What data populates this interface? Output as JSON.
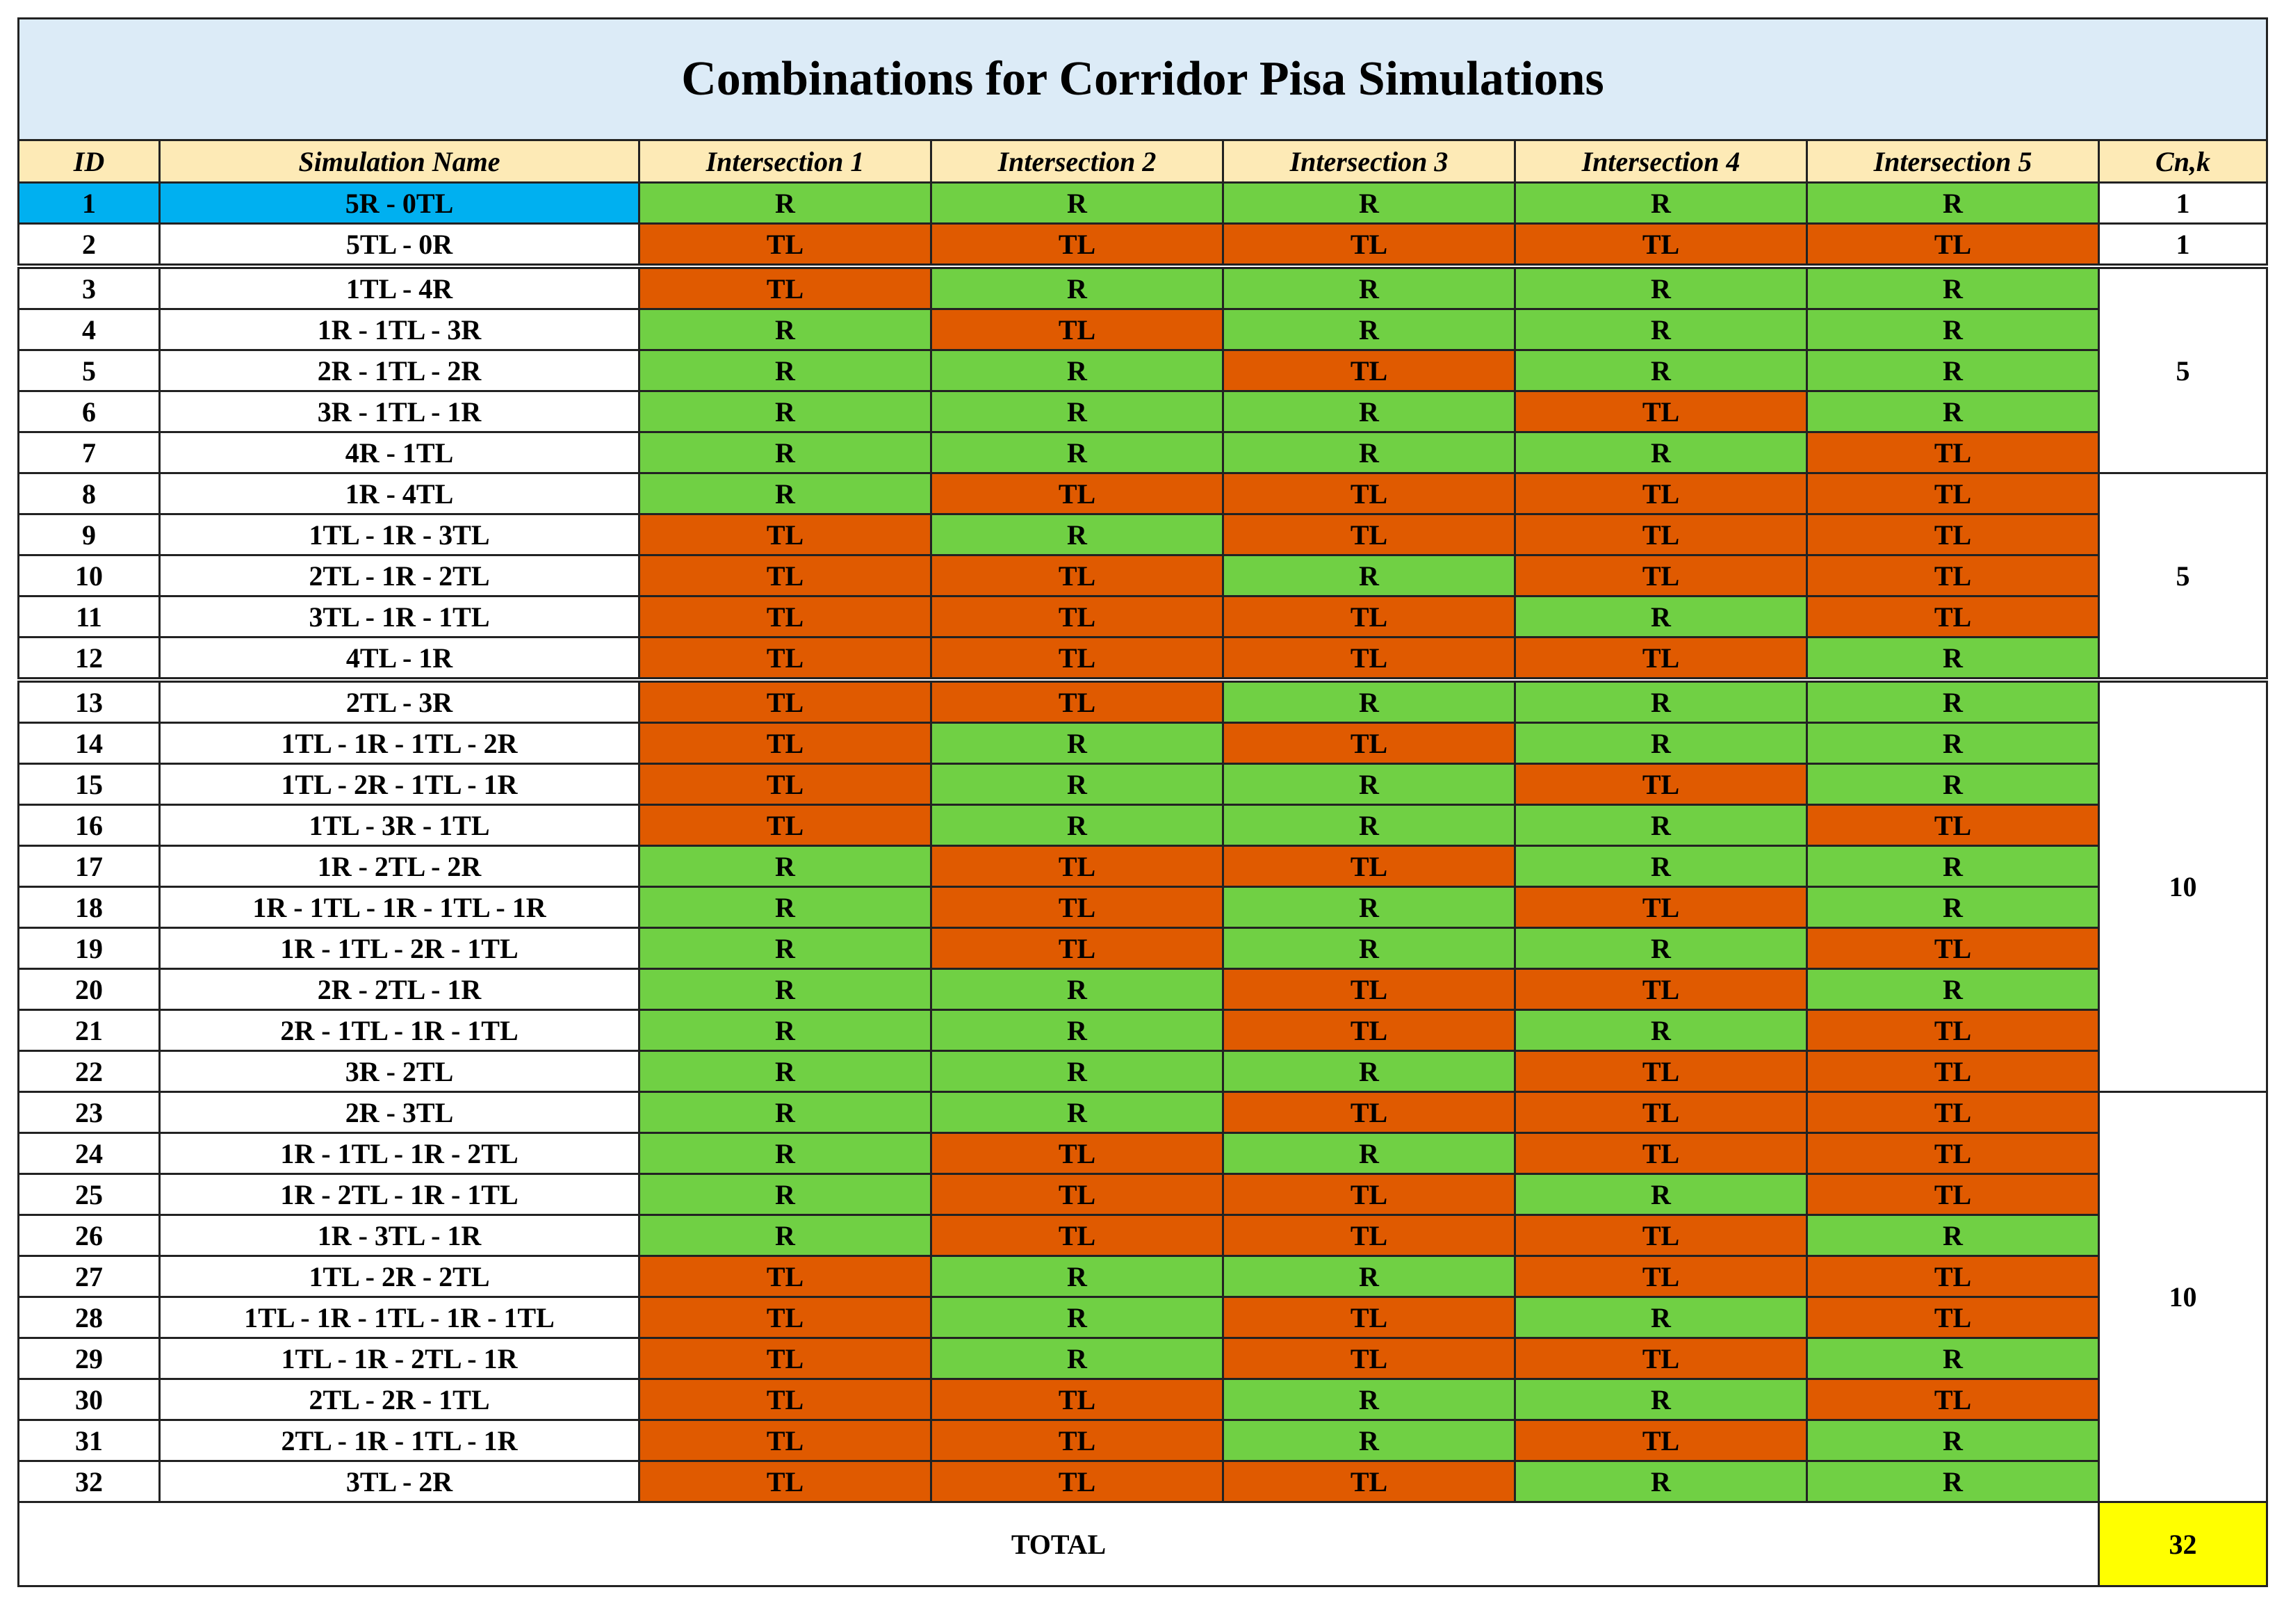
{
  "title": "Combinations for Corridor Pisa Simulations",
  "header": [
    "ID",
    "Simulation Name",
    "Intersection 1",
    "Intersection 2",
    "Intersection 3",
    "Intersection 4",
    "Intersection 5",
    "Cn,k"
  ],
  "colors": {
    "R": "#70d044",
    "TL": "#e05a00",
    "highlight": "#00b0f0",
    "total": "#ffff00",
    "header": "#fdeab6",
    "title": "#dcebf7"
  },
  "rows": [
    [
      1,
      "5R - 0TL",
      "R",
      "R",
      "R",
      "R",
      "R"
    ],
    [
      2,
      "5TL - 0R",
      "TL",
      "TL",
      "TL",
      "TL",
      "TL"
    ],
    [
      3,
      "1TL - 4R",
      "TL",
      "R",
      "R",
      "R",
      "R"
    ],
    [
      4,
      "1R - 1TL - 3R",
      "R",
      "TL",
      "R",
      "R",
      "R"
    ],
    [
      5,
      "2R - 1TL - 2R",
      "R",
      "R",
      "TL",
      "R",
      "R"
    ],
    [
      6,
      "3R - 1TL - 1R",
      "R",
      "R",
      "R",
      "TL",
      "R"
    ],
    [
      7,
      "4R - 1TL",
      "R",
      "R",
      "R",
      "R",
      "TL"
    ],
    [
      8,
      "1R - 4TL",
      "R",
      "TL",
      "TL",
      "TL",
      "TL"
    ],
    [
      9,
      "1TL - 1R - 3TL",
      "TL",
      "R",
      "TL",
      "TL",
      "TL"
    ],
    [
      10,
      "2TL - 1R - 2TL",
      "TL",
      "TL",
      "R",
      "TL",
      "TL"
    ],
    [
      11,
      "3TL - 1R - 1TL",
      "TL",
      "TL",
      "TL",
      "R",
      "TL"
    ],
    [
      12,
      "4TL - 1R",
      "TL",
      "TL",
      "TL",
      "TL",
      "R"
    ],
    [
      13,
      "2TL - 3R",
      "TL",
      "TL",
      "R",
      "R",
      "R"
    ],
    [
      14,
      "1TL - 1R - 1TL - 2R",
      "TL",
      "R",
      "TL",
      "R",
      "R"
    ],
    [
      15,
      "1TL - 2R - 1TL - 1R",
      "TL",
      "R",
      "R",
      "TL",
      "R"
    ],
    [
      16,
      "1TL - 3R - 1TL",
      "TL",
      "R",
      "R",
      "R",
      "TL"
    ],
    [
      17,
      "1R - 2TL - 2R",
      "R",
      "TL",
      "TL",
      "R",
      "R"
    ],
    [
      18,
      "1R - 1TL - 1R - 1TL - 1R",
      "R",
      "TL",
      "R",
      "TL",
      "R"
    ],
    [
      19,
      "1R - 1TL - 2R - 1TL",
      "R",
      "TL",
      "R",
      "R",
      "TL"
    ],
    [
      20,
      "2R - 2TL - 1R",
      "R",
      "R",
      "TL",
      "TL",
      "R"
    ],
    [
      21,
      "2R - 1TL - 1R - 1TL",
      "R",
      "R",
      "TL",
      "R",
      "TL"
    ],
    [
      22,
      "3R - 2TL",
      "R",
      "R",
      "R",
      "TL",
      "TL"
    ],
    [
      23,
      "2R - 3TL",
      "R",
      "R",
      "TL",
      "TL",
      "TL"
    ],
    [
      24,
      "1R - 1TL - 1R - 2TL",
      "R",
      "TL",
      "R",
      "TL",
      "TL"
    ],
    [
      25,
      "1R - 2TL - 1R - 1TL",
      "R",
      "TL",
      "TL",
      "R",
      "TL"
    ],
    [
      26,
      "1R - 3TL - 1R",
      "R",
      "TL",
      "TL",
      "TL",
      "R"
    ],
    [
      27,
      "1TL - 2R - 2TL",
      "TL",
      "R",
      "R",
      "TL",
      "TL"
    ],
    [
      28,
      "1TL - 1R - 1TL - 1R - 1TL",
      "TL",
      "R",
      "TL",
      "R",
      "TL"
    ],
    [
      29,
      "1TL - 1R - 2TL - 1R",
      "TL",
      "R",
      "TL",
      "TL",
      "R"
    ],
    [
      30,
      "2TL - 2R - 1TL",
      "TL",
      "TL",
      "R",
      "R",
      "TL"
    ],
    [
      31,
      "2TL - 1R - 1TL - 1R",
      "TL",
      "TL",
      "R",
      "TL",
      "R"
    ],
    [
      32,
      "3TL - 2R",
      "TL",
      "TL",
      "TL",
      "R",
      "R"
    ]
  ],
  "cn_k": [
    1,
    1,
    5,
    5,
    10,
    10
  ],
  "total": {
    "label": "TOTAL",
    "value": 32
  }
}
